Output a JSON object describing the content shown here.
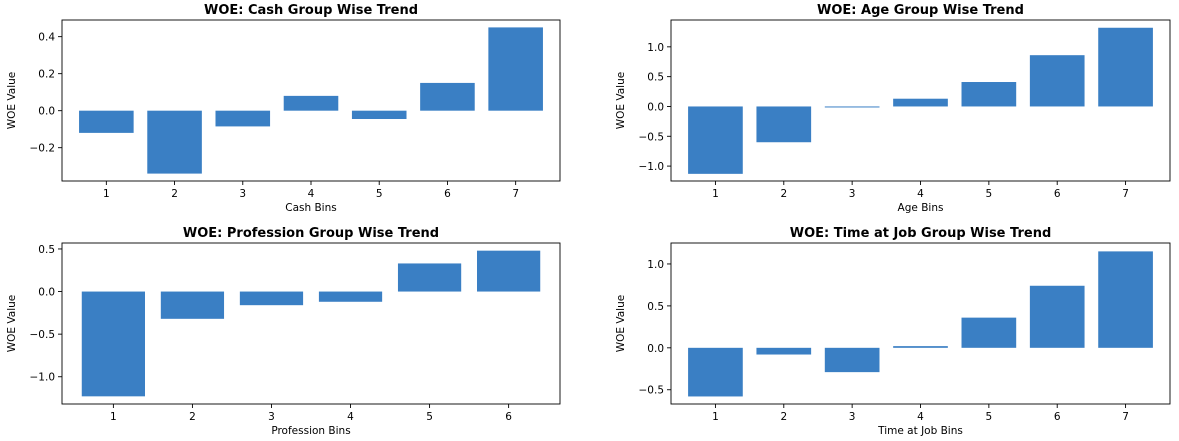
{
  "chart_data": [
    {
      "type": "bar",
      "title": "WOE: Cash Group Wise Trend",
      "xlabel": "Cash Bins",
      "ylabel": "WOE Value",
      "categories": [
        "1",
        "2",
        "3",
        "4",
        "5",
        "6",
        "7"
      ],
      "values": [
        -0.12,
        -0.34,
        -0.085,
        0.08,
        -0.045,
        0.15,
        0.45
      ],
      "ylim": [
        -0.38,
        0.49
      ],
      "yticks": [
        -0.2,
        0.0,
        0.2,
        0.4
      ],
      "ytick_labels": [
        "−0.2",
        "0.0",
        "0.2",
        "0.4"
      ],
      "grid": false,
      "color": "#3a7fc4"
    },
    {
      "type": "bar",
      "title": "WOE: Age Group Wise Trend",
      "xlabel": "Age Bins",
      "ylabel": "WOE Value",
      "categories": [
        "1",
        "2",
        "3",
        "4",
        "5",
        "6",
        "7"
      ],
      "values": [
        -1.13,
        -0.6,
        0.0,
        0.13,
        0.41,
        0.86,
        1.32
      ],
      "ylim": [
        -1.25,
        1.45
      ],
      "yticks": [
        -1.0,
        -0.5,
        0.0,
        0.5,
        1.0
      ],
      "ytick_labels": [
        "−1.0",
        "−0.5",
        "0.0",
        "0.5",
        "1.0"
      ],
      "grid": false,
      "color": "#3a7fc4"
    },
    {
      "type": "bar",
      "title": "WOE: Profession Group Wise Trend",
      "xlabel": "Profession Bins",
      "ylabel": "WOE Value",
      "categories": [
        "1",
        "2",
        "3",
        "4",
        "5",
        "6"
      ],
      "values": [
        -1.23,
        -0.32,
        -0.16,
        -0.12,
        0.33,
        0.48
      ],
      "ylim": [
        -1.32,
        0.57
      ],
      "yticks": [
        -1.0,
        -0.5,
        0.0,
        0.5
      ],
      "ytick_labels": [
        "−1.0",
        "−0.5",
        "0.0",
        "0.5"
      ],
      "grid": false,
      "color": "#3a7fc4"
    },
    {
      "type": "bar",
      "title": "WOE: Time at Job Group Wise Trend",
      "xlabel": "Time at Job Bins",
      "ylabel": "WOE Value",
      "categories": [
        "1",
        "2",
        "3",
        "4",
        "5",
        "6",
        "7"
      ],
      "values": [
        -0.58,
        -0.08,
        -0.29,
        0.02,
        0.36,
        0.74,
        1.15
      ],
      "ylim": [
        -0.67,
        1.25
      ],
      "yticks": [
        -0.5,
        0.0,
        0.5,
        1.0
      ],
      "ytick_labels": [
        "−0.5",
        "0.0",
        "0.5",
        "1.0"
      ],
      "grid": false,
      "color": "#3a7fc4"
    }
  ]
}
